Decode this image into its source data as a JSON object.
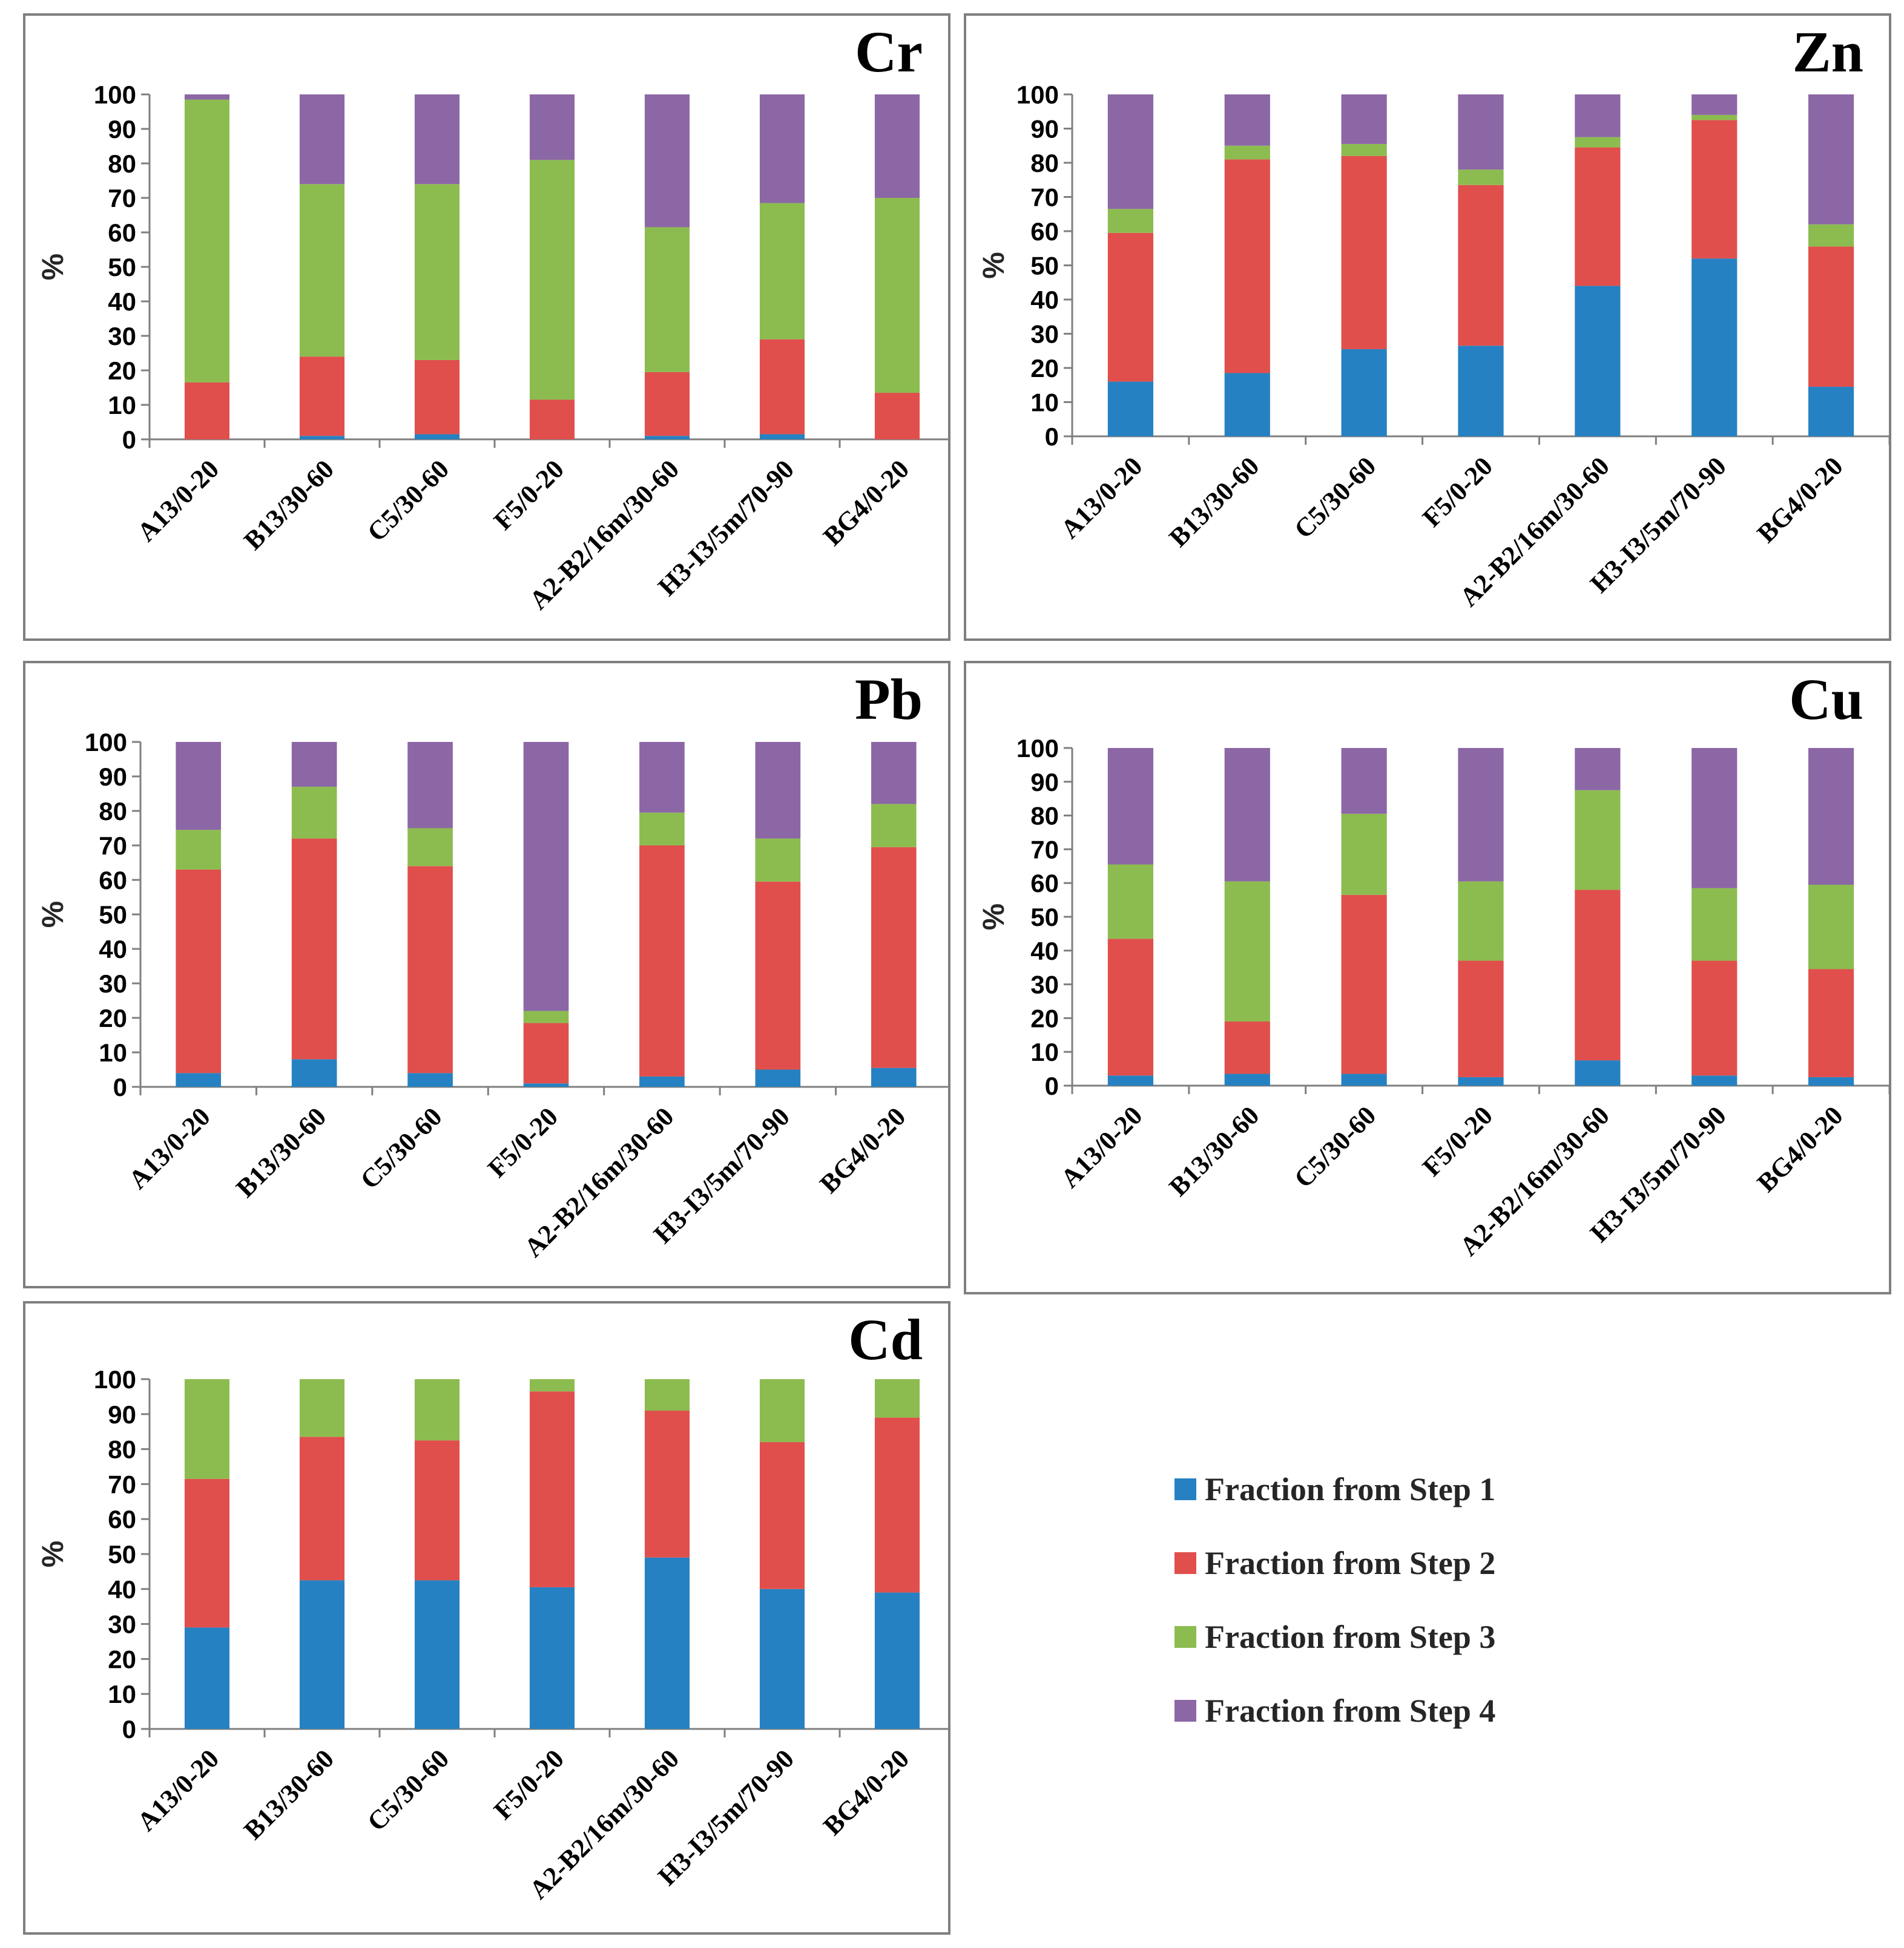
{
  "chart_data": [
    {
      "type": "bar",
      "stacked": true,
      "title": "Cr",
      "xlabel": "",
      "ylabel": "%",
      "ylim": [
        0,
        100
      ],
      "yticks": [
        "0",
        "10",
        "20",
        "30",
        "40",
        "50",
        "60",
        "70",
        "80",
        "90",
        "100"
      ],
      "categories": [
        "A13/0-20",
        "B13/30-60",
        "C5/30-60",
        "F5/0-20",
        "A2-B2/16m/30-60",
        "H3-I3/5m/70-90",
        "BG4/0-20"
      ],
      "series": [
        {
          "name": "Fraction from Step 1",
          "values": [
            0,
            1,
            1.5,
            0,
            1,
            1.5,
            0
          ]
        },
        {
          "name": "Fraction from Step 2",
          "values": [
            16.5,
            23,
            21.5,
            11.5,
            18.5,
            27.5,
            13.5
          ]
        },
        {
          "name": "Fraction from Step 3",
          "values": [
            82,
            50,
            51,
            69.5,
            42,
            39.5,
            56.5
          ]
        },
        {
          "name": "Fraction from Step 4",
          "values": [
            1.5,
            26,
            26,
            19,
            38.5,
            31.5,
            30
          ]
        }
      ]
    },
    {
      "type": "bar",
      "stacked": true,
      "title": "Zn",
      "xlabel": "",
      "ylabel": "%",
      "ylim": [
        0,
        100
      ],
      "yticks": [
        "0",
        "10",
        "20",
        "30",
        "40",
        "50",
        "60",
        "70",
        "80",
        "90",
        "100"
      ],
      "categories": [
        "A13/0-20",
        "B13/30-60",
        "C5/30-60",
        "F5/0-20",
        "A2-B2/16m/30-60",
        "H3-I3/5m/70-90",
        "BG4/0-20"
      ],
      "series": [
        {
          "name": "Fraction from Step 1",
          "values": [
            16,
            18.5,
            25.5,
            26.5,
            44,
            52,
            14.5
          ]
        },
        {
          "name": "Fraction from Step 2",
          "values": [
            43.5,
            62.5,
            56.5,
            47,
            40.5,
            40.5,
            41
          ]
        },
        {
          "name": "Fraction from Step 3",
          "values": [
            7,
            4,
            3.5,
            4.5,
            3,
            1.5,
            6.5
          ]
        },
        {
          "name": "Fraction from Step 4",
          "values": [
            33.5,
            15,
            14.5,
            22,
            12.5,
            6,
            38
          ]
        }
      ]
    },
    {
      "type": "bar",
      "stacked": true,
      "title": "Pb",
      "xlabel": "",
      "ylabel": "%",
      "ylim": [
        0,
        100
      ],
      "yticks": [
        "0",
        "10",
        "20",
        "30",
        "40",
        "50",
        "60",
        "70",
        "80",
        "90",
        "100"
      ],
      "categories": [
        "A13/0-20",
        "B13/30-60",
        "C5/30-60",
        "F5/0-20",
        "A2-B2/16m/30-60",
        "H3-I3/5m/70-90",
        "BG4/0-20"
      ],
      "series": [
        {
          "name": "Fraction from Step 1",
          "values": [
            4,
            8,
            4,
            1,
            3,
            5,
            5.5
          ]
        },
        {
          "name": "Fraction from Step 2",
          "values": [
            59,
            64,
            60,
            17.5,
            67,
            54.5,
            64
          ]
        },
        {
          "name": "Fraction from Step 3",
          "values": [
            11.5,
            15,
            11,
            3.5,
            9.5,
            12.5,
            12.5
          ]
        },
        {
          "name": "Fraction from Step 4",
          "values": [
            25.5,
            13,
            25,
            78,
            20.5,
            28,
            18
          ]
        }
      ]
    },
    {
      "type": "bar",
      "stacked": true,
      "title": "Cu",
      "xlabel": "",
      "ylabel": "%",
      "ylim": [
        0,
        100
      ],
      "yticks": [
        "0",
        "10",
        "20",
        "30",
        "40",
        "50",
        "60",
        "70",
        "80",
        "90",
        "100"
      ],
      "categories": [
        "A13/0-20",
        "B13/30-60",
        "C5/30-60",
        "F5/0-20",
        "A2-B2/16m/30-60",
        "H3-I3/5m/70-90",
        "BG4/0-20"
      ],
      "series": [
        {
          "name": "Fraction from Step 1",
          "values": [
            3,
            3.5,
            3.5,
            2.5,
            7.5,
            3,
            2.5
          ]
        },
        {
          "name": "Fraction from Step 2",
          "values": [
            40.5,
            15.5,
            53,
            34.5,
            50.5,
            34,
            32
          ]
        },
        {
          "name": "Fraction from Step 3",
          "values": [
            22,
            41.5,
            24,
            23.5,
            29.5,
            21.5,
            25
          ]
        },
        {
          "name": "Fraction from Step 4",
          "values": [
            34.5,
            39.5,
            19.5,
            39.5,
            12.5,
            41.5,
            40.5
          ]
        }
      ]
    },
    {
      "type": "bar",
      "stacked": true,
      "title": "Cd",
      "xlabel": "",
      "ylabel": "%",
      "ylim": [
        0,
        100
      ],
      "yticks": [
        "0",
        "10",
        "20",
        "30",
        "40",
        "50",
        "60",
        "70",
        "80",
        "90",
        "100"
      ],
      "categories": [
        "A13/0-20",
        "B13/30-60",
        "C5/30-60",
        "F5/0-20",
        "A2-B2/16m/30-60",
        "H3-I3/5m/70-90",
        "BG4/0-20"
      ],
      "series": [
        {
          "name": "Fraction from Step 1",
          "values": [
            29,
            42.5,
            42.5,
            40.5,
            49,
            40,
            39
          ]
        },
        {
          "name": "Fraction from Step 2",
          "values": [
            42.5,
            41,
            40,
            56,
            42,
            42,
            50
          ]
        },
        {
          "name": "Fraction from Step 3",
          "values": [
            28.5,
            16.5,
            17.5,
            3.5,
            9,
            18,
            11
          ]
        },
        {
          "name": "Fraction from Step 4",
          "values": [
            0,
            0,
            0,
            0,
            0,
            0,
            0
          ]
        }
      ]
    }
  ],
  "legend": {
    "items": [
      "Fraction from Step 1",
      "Fraction from Step 2",
      "Fraction from Step 3",
      "Fraction from Step 4"
    ]
  },
  "colors": {
    "step1": "#2681c2",
    "step2": "#e04f4c",
    "step3": "#8cbc4f",
    "step4": "#8c67a6",
    "axis": "#7f7f7f",
    "text": "#262626"
  }
}
